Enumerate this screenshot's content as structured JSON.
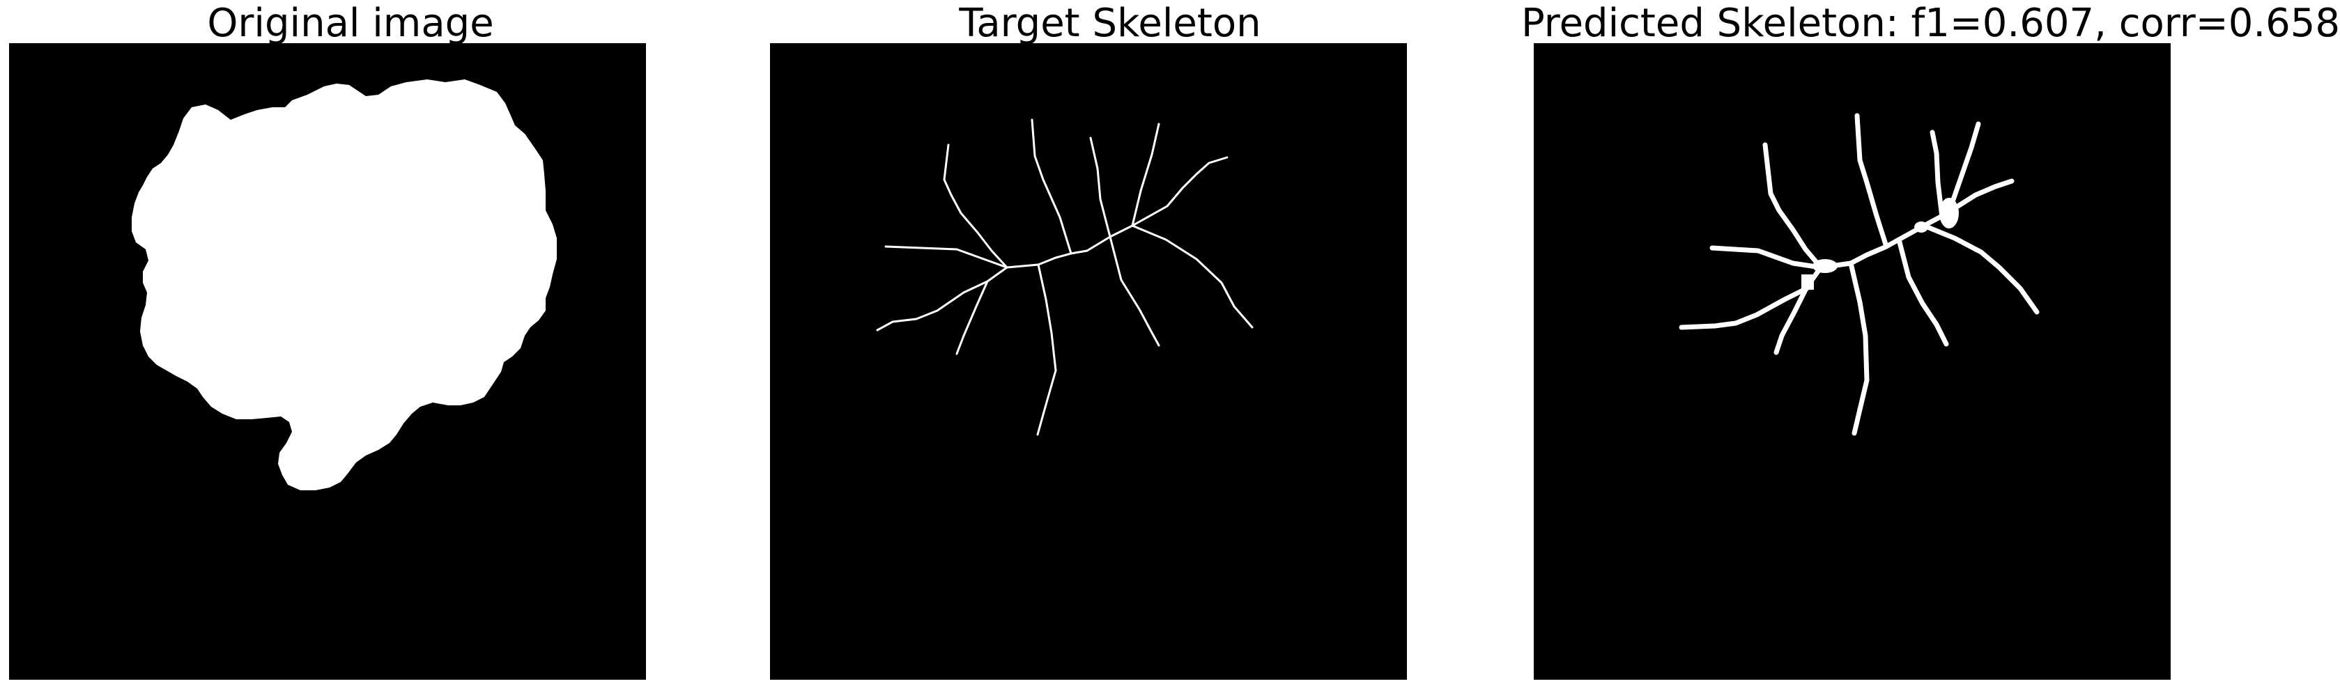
{
  "panels": [
    {
      "title": "Original image"
    },
    {
      "title": "Target Skeleton"
    },
    {
      "title": "Predicted Skeleton: f1=0.607, corr=0.658"
    }
  ],
  "colors": {
    "background": "#000000",
    "foreground": "#ffffff",
    "page": "#ffffff"
  }
}
